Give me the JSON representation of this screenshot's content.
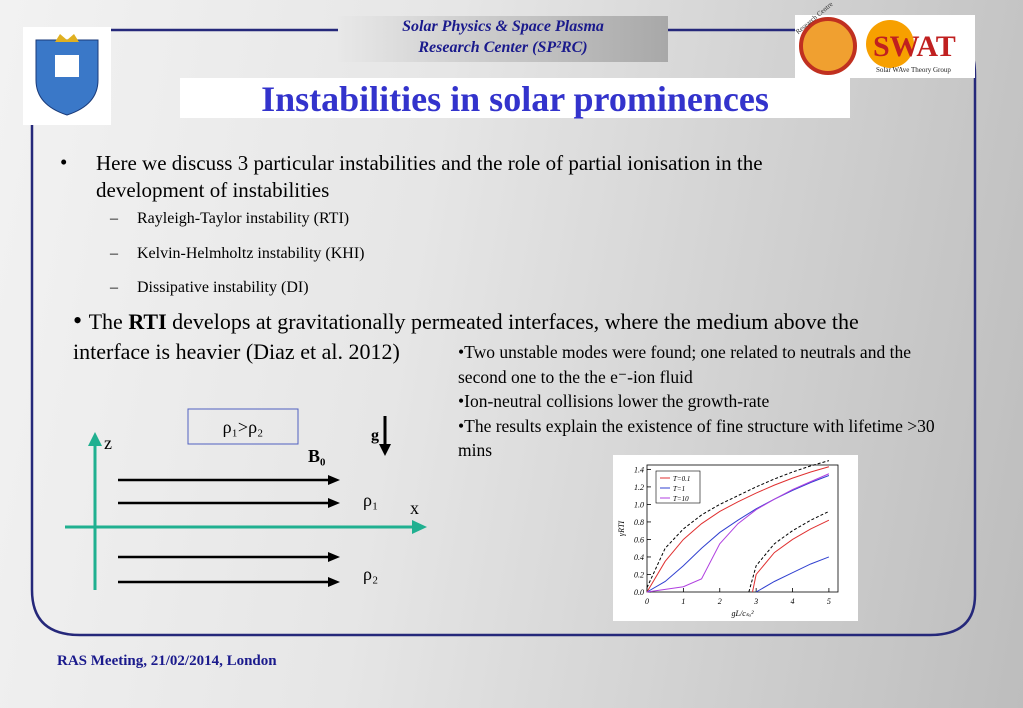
{
  "header": {
    "lines": [
      "Solar Physics & Space Plasma",
      "Research Center (SP²RC)"
    ]
  },
  "logo": {
    "research": "Research Centre",
    "swat": "SWAT",
    "group": "Solar WAve Theory Group"
  },
  "title": "Instabilities in solar prominences",
  "bullets": [
    {
      "text": "Here we discuss 3 particular instabilities and the role of partial ionisation in the development of instabilities",
      "items": [
        "Rayleigh-Taylor instability (RTI)",
        "Kelvin-Helmholtz instability (KHI)",
        "Dissipative instability (DI)"
      ]
    }
  ],
  "rti": {
    "before": "The ",
    "bold": "RTI",
    "after": " develops at gravitationally permeated interfaces, where the medium above the interface is heavier (Diaz et al. 2012)"
  },
  "notes": [
    "•Two unstable modes were found; one related to neutrals and the second one to the the e⁻-ion fluid",
    "•Ion-neutral collisions lower the growth-rate",
    "•The results explain the existence of fine structure with lifetime >30 mins"
  ],
  "diagram": {
    "density": "ρ₁>ρ₂",
    "z": "z",
    "x": "x",
    "g": "g",
    "b": "B₀",
    "rho1": "ρ₁",
    "rho2": "ρ₂"
  },
  "plot": {
    "type": "line",
    "xlabel": "gL/cₛₐ²",
    "ylabel": "γRTI",
    "xlim": [
      0,
      5.25
    ],
    "ylim": [
      0,
      1.45
    ],
    "xticks": [
      0,
      1,
      2,
      3,
      4,
      5
    ],
    "yticks": [
      {
        "value": 0,
        "label": "0.0"
      },
      0.2,
      0.4,
      0.6,
      0.8,
      {
        "value": 1,
        "label": "1.0"
      },
      1.2,
      1.4
    ],
    "series": [
      {
        "color": "#000000",
        "dashed": true,
        "x": [
          0,
          0.5,
          1,
          1.5,
          2,
          2.5,
          3,
          3.5,
          4,
          4.5,
          5
        ],
        "values": [
          0.05,
          0.5,
          0.72,
          0.88,
          1.0,
          1.1,
          1.2,
          1.29,
          1.37,
          1.44,
          1.5
        ]
      },
      {
        "name": "T=0.1",
        "color": "#e03030",
        "x": [
          0,
          0.5,
          1,
          1.5,
          2,
          2.5,
          3,
          3.5,
          4,
          4.5,
          5
        ],
        "values": [
          0,
          0.35,
          0.6,
          0.78,
          0.92,
          1.03,
          1.13,
          1.22,
          1.3,
          1.37,
          1.43
        ]
      },
      {
        "name": "T=1",
        "color": "#3040d0",
        "x": [
          0,
          0.5,
          1,
          1.5,
          2,
          2.5,
          3,
          3.5,
          4,
          4.5,
          5
        ],
        "values": [
          0,
          0.12,
          0.3,
          0.5,
          0.68,
          0.82,
          0.95,
          1.06,
          1.16,
          1.25,
          1.33
        ]
      },
      {
        "name": "T=10",
        "color": "#b040e0",
        "x": [
          0,
          0.5,
          1,
          1.5,
          2,
          2.5,
          3,
          3.5,
          4,
          4.5,
          5
        ],
        "values": [
          0,
          0.03,
          0.06,
          0.15,
          0.55,
          0.78,
          0.94,
          1.06,
          1.17,
          1.26,
          1.35
        ]
      },
      {
        "color": "#000000",
        "dashed": true,
        "x": [
          2.8,
          3,
          3.5,
          4,
          4.5,
          5
        ],
        "values": [
          0,
          0.3,
          0.55,
          0.7,
          0.82,
          0.92
        ]
      },
      {
        "color": "#e03030",
        "x": [
          2.9,
          3,
          3.5,
          4,
          4.5,
          5
        ],
        "values": [
          0,
          0.2,
          0.45,
          0.6,
          0.72,
          0.82
        ]
      },
      {
        "color": "#3040d0",
        "x": [
          3,
          3.5,
          4,
          4.5,
          5
        ],
        "values": [
          0,
          0.12,
          0.22,
          0.32,
          0.4
        ]
      }
    ]
  }
}
